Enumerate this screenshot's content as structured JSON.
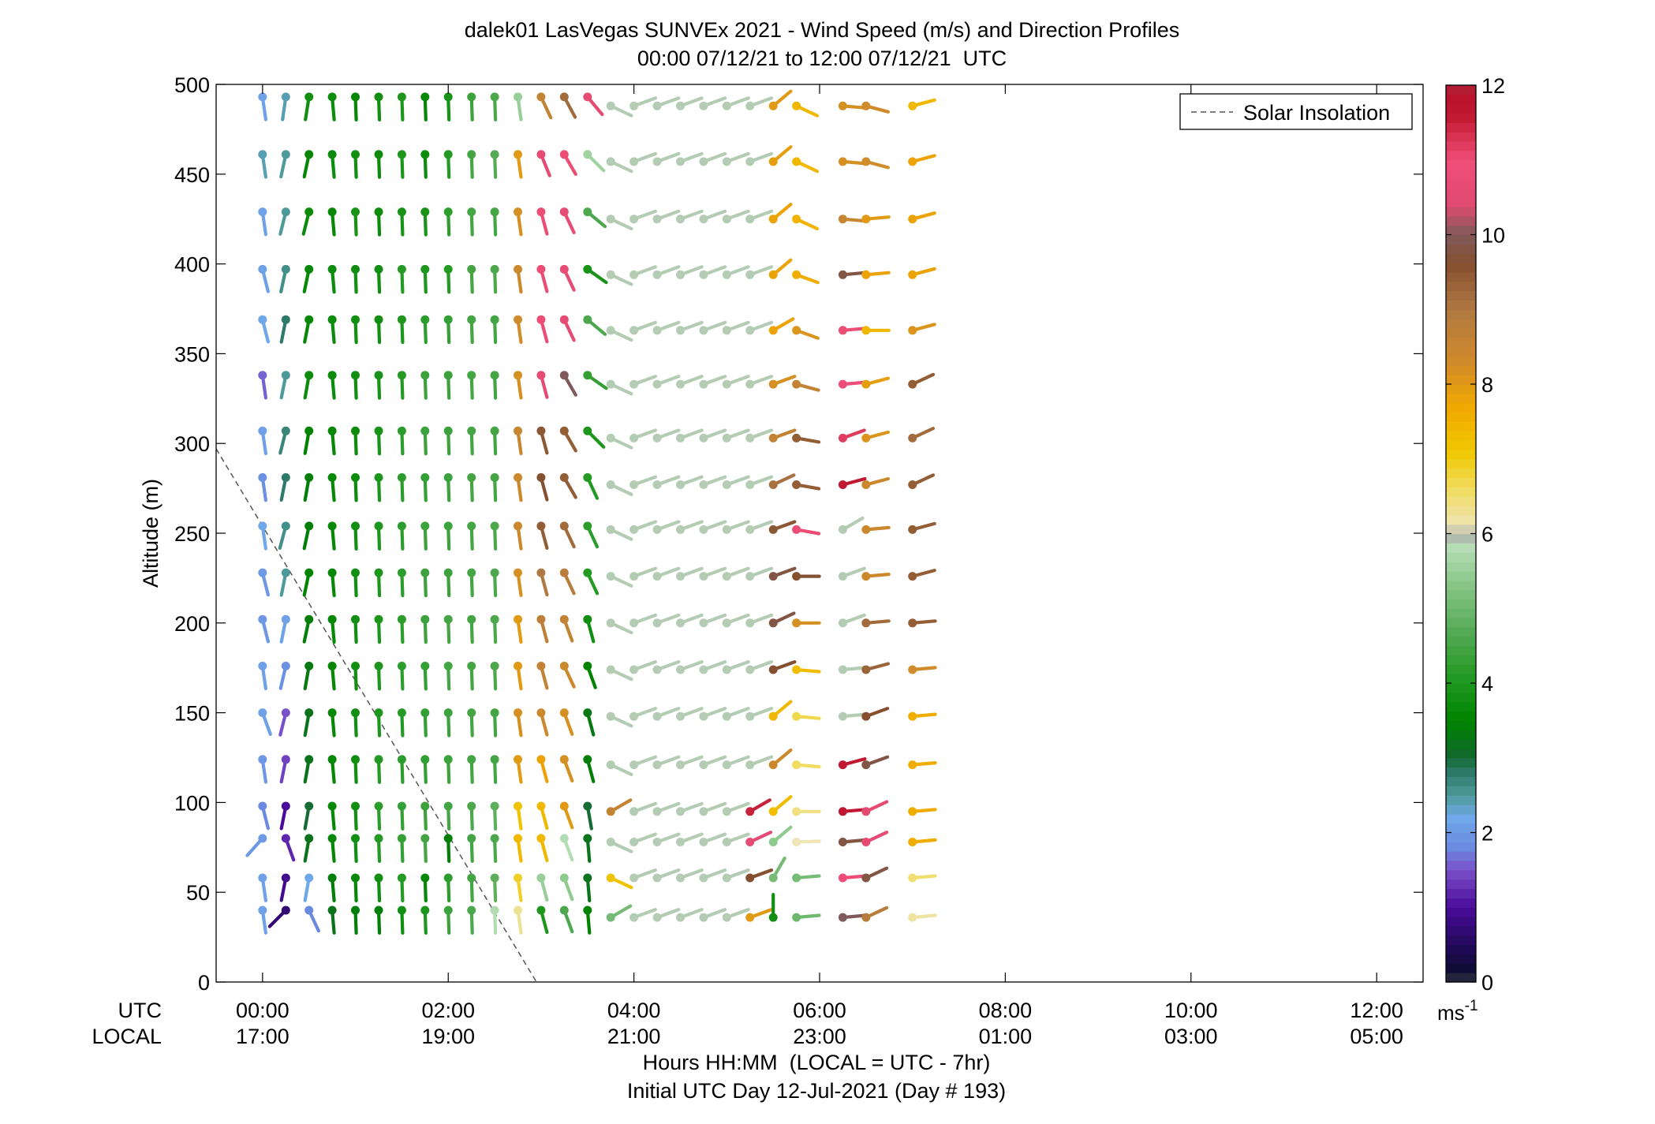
{
  "chart_data": {
    "type": "scatter",
    "title": "dalek01 LasVegas SUNVEx 2021 - Wind Speed (m/s) and Direction Profiles",
    "subtitle": "00:00 07/12/21 to 12:00 07/12/21  UTC",
    "ylabel": "Altitude (m)",
    "xlabel": "Hours HH:MM  (LOCAL = UTC - 7hr)",
    "xlabel2": "Initial UTC Day 12-Jul-2021 (Day # 193)",
    "x_row_labels": {
      "utc": "UTC",
      "local": "LOCAL"
    },
    "xlim_hours": [
      -0.5,
      12.5
    ],
    "ylim": [
      0,
      500
    ],
    "y_ticks": [
      0,
      50,
      100,
      150,
      200,
      250,
      300,
      350,
      400,
      450,
      500
    ],
    "x_ticks": [
      {
        "hour": 0,
        "utc": "00:00",
        "local": "17:00"
      },
      {
        "hour": 2,
        "utc": "02:00",
        "local": "19:00"
      },
      {
        "hour": 4,
        "utc": "04:00",
        "local": "21:00"
      },
      {
        "hour": 6,
        "utc": "06:00",
        "local": "23:00"
      },
      {
        "hour": 8,
        "utc": "08:00",
        "local": "01:00"
      },
      {
        "hour": 10,
        "utc": "10:00",
        "local": "03:00"
      },
      {
        "hour": 12,
        "utc": "12:00",
        "local": "05:00"
      }
    ],
    "legend": {
      "label": "Solar Insolation",
      "position": "top-right",
      "style": "dashed gray line"
    },
    "solar_insolation": {
      "x_hours": [
        -0.5,
        2.95
      ],
      "y": [
        297,
        0
      ]
    },
    "colorbar": {
      "ticks": [
        0,
        2,
        4,
        6,
        8,
        10,
        12
      ],
      "unit_base": "ms",
      "unit_exp": "-1",
      "range": [
        0,
        12
      ]
    },
    "times_hours": [
      0,
      0.25,
      0.5,
      0.75,
      1.0,
      1.25,
      1.5,
      1.75,
      2.0,
      2.25,
      2.5,
      2.75,
      3.0,
      3.25,
      3.5
    ],
    "altitudes_early": [
      493,
      461,
      429,
      397,
      369,
      338,
      307,
      281,
      254,
      228,
      202,
      176,
      150,
      124,
      98,
      80,
      58,
      40
    ],
    "ws_early": [
      [
        2.1,
        2.4,
        3.8,
        3.7,
        3.6,
        3.8,
        4.0,
        3.6,
        3.9,
        4.4,
        4.6,
        5.5,
        8.6,
        9.2,
        10.6
      ],
      [
        2.4,
        2.5,
        3.6,
        3.7,
        3.8,
        3.7,
        4.0,
        3.7,
        4.1,
        4.5,
        4.7,
        8.0,
        10.6,
        10.8,
        5.6
      ],
      [
        2.1,
        2.5,
        3.7,
        3.6,
        3.9,
        3.7,
        3.9,
        3.9,
        4.2,
        4.5,
        4.5,
        8.2,
        10.8,
        10.7,
        4.6
      ],
      [
        2.1,
        2.6,
        3.6,
        3.7,
        3.8,
        3.8,
        4.1,
        4.0,
        4.1,
        4.5,
        4.6,
        8.4,
        10.8,
        10.6,
        3.9
      ],
      [
        2.2,
        2.8,
        3.6,
        3.7,
        3.8,
        3.8,
        4.0,
        4.2,
        4.3,
        4.5,
        4.5,
        8.3,
        10.9,
        10.6,
        4.6
      ],
      [
        1.6,
        2.5,
        3.7,
        3.7,
        3.8,
        3.9,
        4.1,
        4.4,
        4.4,
        4.5,
        4.5,
        8.2,
        10.6,
        10.0,
        4.3
      ],
      [
        2.1,
        2.7,
        3.5,
        3.6,
        3.7,
        3.9,
        4.2,
        4.4,
        4.4,
        4.5,
        4.5,
        8.5,
        9.5,
        9.4,
        4.0
      ],
      [
        1.9,
        2.8,
        3.4,
        3.6,
        3.7,
        4.0,
        4.2,
        4.3,
        4.4,
        4.5,
        4.5,
        8.4,
        9.6,
        9.4,
        4.1
      ],
      [
        2.2,
        2.6,
        3.4,
        3.6,
        3.8,
        4.0,
        4.2,
        4.4,
        4.4,
        4.5,
        4.6,
        8.4,
        9.4,
        9.2,
        4.2
      ],
      [
        2.0,
        2.5,
        3.5,
        3.6,
        3.8,
        4.0,
        4.2,
        4.4,
        4.4,
        4.5,
        4.6,
        8.2,
        9.0,
        8.8,
        4.1
      ],
      [
        2.0,
        2.1,
        3.4,
        3.6,
        3.8,
        4.0,
        4.2,
        4.4,
        4.5,
        4.5,
        4.6,
        8.0,
        8.7,
        8.6,
        3.8
      ],
      [
        2.1,
        1.9,
        3.3,
        3.6,
        3.8,
        4.0,
        4.2,
        4.3,
        4.5,
        4.5,
        4.6,
        8.0,
        8.6,
        8.4,
        3.5
      ],
      [
        2.1,
        1.5,
        3.2,
        3.6,
        3.8,
        4.0,
        4.1,
        4.3,
        4.4,
        4.5,
        4.5,
        8.2,
        8.4,
        8.2,
        3.3
      ],
      [
        2.0,
        1.4,
        3.2,
        3.6,
        3.8,
        4.1,
        4.2,
        4.3,
        4.4,
        4.5,
        4.5,
        8.0,
        7.8,
        8.2,
        3.4
      ],
      [
        1.8,
        1.0,
        3.0,
        3.6,
        3.8,
        4.2,
        4.3,
        4.4,
        4.5,
        4.6,
        4.8,
        7.2,
        7.4,
        8.0,
        3.0
      ],
      [
        2.0,
        1.2,
        3.2,
        3.6,
        3.8,
        4.1,
        4.3,
        4.5,
        3.4,
        4.5,
        4.6,
        7.4,
        7.4,
        5.8,
        3.2
      ],
      [
        2.1,
        0.9,
        2.2,
        3.4,
        3.6,
        3.8,
        4.1,
        3.6,
        4.2,
        4.5,
        4.8,
        6.9,
        5.5,
        5.4,
        3.2
      ],
      [
        2.1,
        0.7,
        1.8,
        3.2,
        3.4,
        3.4,
        3.8,
        4.0,
        4.4,
        4.6,
        5.8,
        6.3,
        4.0,
        4.6,
        3.5
      ]
    ],
    "wd_early": [
      [
        8,
        352,
        351,
        5,
        2,
        2,
        2,
        2,
        2,
        2,
        2,
        8,
        25,
        28,
        40
      ],
      [
        8,
        348,
        348,
        5,
        2,
        2,
        2,
        2,
        2,
        2,
        2,
        8,
        22,
        30,
        45
      ],
      [
        8,
        346,
        346,
        5,
        2,
        2,
        2,
        2,
        2,
        2,
        2,
        8,
        15,
        25,
        50
      ],
      [
        14,
        348,
        348,
        5,
        2,
        2,
        2,
        2,
        2,
        2,
        2,
        8,
        15,
        25,
        55
      ],
      [
        14,
        349,
        349,
        5,
        2,
        2,
        2,
        2,
        2,
        2,
        2,
        8,
        15,
        25,
        50
      ],
      [
        8,
        349,
        350,
        5,
        2,
        2,
        2,
        2,
        2,
        2,
        2,
        8,
        15,
        30,
        55
      ],
      [
        8,
        346,
        350,
        5,
        2,
        2,
        2,
        2,
        2,
        2,
        2,
        8,
        15,
        30,
        45
      ],
      [
        8,
        349,
        350,
        5,
        2,
        2,
        2,
        2,
        2,
        2,
        2,
        8,
        15,
        30,
        25
      ],
      [
        8,
        345,
        348,
        5,
        2,
        2,
        2,
        2,
        2,
        2,
        2,
        8,
        15,
        25,
        25
      ],
      [
        14,
        349,
        348,
        5,
        2,
        2,
        2,
        2,
        2,
        2,
        2,
        8,
        15,
        25,
        25
      ],
      [
        14,
        349,
        348,
        5,
        2,
        2,
        2,
        2,
        2,
        2,
        2,
        8,
        15,
        20,
        15
      ],
      [
        8,
        347,
        350,
        5,
        2,
        2,
        2,
        2,
        2,
        2,
        2,
        8,
        15,
        25,
        20
      ],
      [
        20,
        346,
        350,
        5,
        2,
        2,
        2,
        2,
        2,
        2,
        2,
        8,
        15,
        20,
        15
      ],
      [
        8,
        349,
        350,
        5,
        2,
        2,
        2,
        2,
        2,
        2,
        2,
        8,
        15,
        20,
        15
      ],
      [
        14,
        349,
        350,
        5,
        2,
        2,
        2,
        2,
        2,
        2,
        2,
        8,
        15,
        20,
        10
      ],
      [
        318,
        20,
        350,
        5,
        2,
        2,
        2,
        2,
        2,
        2,
        2,
        8,
        15,
        20,
        5
      ],
      [
        8,
        349,
        350,
        5,
        2,
        2,
        2,
        2,
        2,
        2,
        2,
        8,
        15,
        20,
        5
      ],
      [
        8,
        315,
        25,
        5,
        2,
        2,
        2,
        2,
        2,
        2,
        2,
        8,
        15,
        20,
        5
      ]
    ],
    "times_late": [
      3.75,
      4.0,
      4.25,
      4.5,
      4.75,
      5.0,
      5.25,
      5.5,
      5.75,
      6.25,
      6.5,
      7.0
    ],
    "altitudes_late": [
      488,
      457,
      425,
      394,
      363,
      333,
      303,
      277,
      252,
      226,
      200,
      174,
      148,
      121,
      95,
      78,
      58,
      36
    ],
    "ws_late": [
      [
        5.9,
        5.9,
        5.9,
        5.9,
        5.9,
        5.9,
        5.9,
        8.0,
        7.4,
        8.2,
        8.3,
        7.4
      ],
      [
        5.9,
        5.9,
        5.9,
        5.9,
        5.9,
        5.9,
        5.9,
        7.9,
        7.4,
        8.2,
        8.3,
        7.8
      ],
      [
        5.9,
        5.9,
        5.9,
        5.9,
        5.9,
        5.9,
        5.9,
        7.8,
        7.5,
        8.5,
        8.0,
        7.8
      ],
      [
        5.9,
        5.9,
        5.9,
        5.9,
        5.9,
        5.9,
        5.9,
        7.8,
        7.6,
        9.8,
        7.8,
        7.8
      ],
      [
        5.9,
        5.9,
        5.9,
        5.9,
        5.9,
        5.9,
        5.9,
        7.8,
        8.1,
        10.8,
        7.4,
        8.1
      ],
      [
        5.9,
        5.9,
        5.9,
        5.9,
        5.9,
        5.9,
        5.9,
        8.2,
        8.6,
        10.9,
        7.9,
        9.4
      ],
      [
        5.9,
        5.9,
        5.9,
        5.9,
        5.9,
        5.9,
        5.9,
        8.6,
        9.4,
        11.2,
        8.1,
        9.2
      ],
      [
        5.9,
        5.9,
        5.9,
        5.9,
        5.9,
        5.9,
        5.9,
        9.1,
        9.4,
        11.6,
        8.4,
        9.4
      ],
      [
        5.9,
        5.9,
        5.9,
        5.9,
        5.9,
        5.9,
        5.9,
        9.5,
        10.8,
        5.9,
        8.4,
        9.4
      ],
      [
        5.9,
        5.9,
        5.9,
        5.9,
        5.9,
        5.9,
        5.9,
        9.8,
        9.6,
        5.9,
        8.4,
        9.4
      ],
      [
        5.9,
        5.9,
        5.9,
        5.9,
        5.9,
        5.9,
        5.9,
        9.8,
        8.2,
        5.9,
        9.2,
        9.4
      ],
      [
        5.9,
        5.9,
        5.9,
        5.9,
        5.9,
        5.9,
        5.9,
        9.6,
        7.3,
        5.9,
        9.3,
        8.3
      ],
      [
        5.9,
        5.9,
        5.9,
        5.9,
        5.9,
        5.9,
        5.9,
        7.4,
        6.7,
        5.9,
        9.6,
        7.6
      ],
      [
        5.9,
        5.9,
        5.9,
        5.9,
        5.9,
        5.9,
        5.9,
        8.4,
        6.6,
        11.6,
        9.8,
        7.6
      ],
      [
        8.6,
        5.9,
        5.9,
        5.9,
        5.9,
        5.9,
        11.5,
        7.3,
        6.4,
        11.6,
        10.5,
        7.6
      ],
      [
        5.9,
        5.9,
        5.9,
        5.9,
        5.9,
        5.9,
        10.6,
        5.4,
        6.1,
        9.8,
        10.6,
        7.6
      ],
      [
        7.2,
        5.9,
        5.9,
        5.9,
        5.9,
        5.9,
        9.6,
        5.1,
        5.1,
        10.9,
        9.8,
        6.5
      ],
      [
        5.1,
        5.9,
        5.9,
        5.9,
        5.9,
        5.9,
        8.0,
        3.8,
        5.0,
        10.0,
        8.8,
        6.2
      ]
    ],
    "wd_late": [
      [
        65,
        110,
        110,
        110,
        110,
        110,
        110,
        130,
        65,
        85,
        75,
        105
      ],
      [
        65,
        110,
        110,
        110,
        110,
        110,
        110,
        130,
        65,
        85,
        75,
        105
      ],
      [
        65,
        110,
        110,
        110,
        110,
        110,
        110,
        130,
        65,
        85,
        95,
        105
      ],
      [
        65,
        110,
        110,
        110,
        110,
        110,
        110,
        130,
        70,
        95,
        95,
        105
      ],
      [
        65,
        110,
        110,
        110,
        110,
        110,
        110,
        120,
        70,
        95,
        90,
        105
      ],
      [
        65,
        110,
        110,
        110,
        110,
        110,
        110,
        110,
        75,
        95,
        105,
        115
      ],
      [
        65,
        110,
        110,
        110,
        110,
        110,
        110,
        110,
        80,
        110,
        105,
        115
      ],
      [
        65,
        110,
        110,
        110,
        110,
        110,
        110,
        115,
        80,
        105,
        105,
        115
      ],
      [
        65,
        110,
        110,
        110,
        110,
        110,
        110,
        110,
        80,
        120,
        95,
        105
      ],
      [
        65,
        110,
        110,
        110,
        110,
        110,
        110,
        110,
        90,
        110,
        95,
        105
      ],
      [
        65,
        110,
        110,
        110,
        110,
        110,
        110,
        115,
        90,
        110,
        95,
        95
      ],
      [
        65,
        110,
        110,
        110,
        110,
        110,
        110,
        110,
        85,
        95,
        105,
        95
      ],
      [
        65,
        110,
        110,
        110,
        110,
        110,
        110,
        130,
        85,
        95,
        110,
        95
      ],
      [
        65,
        110,
        110,
        110,
        110,
        110,
        110,
        130,
        85,
        105,
        110,
        95
      ],
      [
        120,
        110,
        110,
        110,
        110,
        110,
        120,
        130,
        90,
        95,
        115,
        95
      ],
      [
        65,
        110,
        110,
        110,
        110,
        110,
        115,
        130,
        92,
        95,
        115,
        95
      ],
      [
        65,
        110,
        110,
        110,
        110,
        110,
        110,
        150,
        95,
        95,
        115,
        95
      ],
      [
        120,
        110,
        110,
        110,
        110,
        110,
        110,
        180,
        95,
        95,
        115,
        95
      ]
    ]
  }
}
